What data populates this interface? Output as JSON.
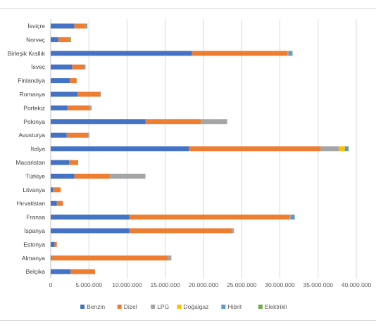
{
  "chart_data": {
    "type": "bar",
    "orientation": "horizontal",
    "stacked": true,
    "title": "",
    "xlabel": "",
    "ylabel": "",
    "xlim": [
      0,
      40000000
    ],
    "x_ticks": [
      {
        "value": 0,
        "label": "0"
      },
      {
        "value": 5000000,
        "label": "5.000.000"
      },
      {
        "value": 10000000,
        "label": "10.000.000"
      },
      {
        "value": 15000000,
        "label": "15.000.000"
      },
      {
        "value": 20000000,
        "label": "20.000.000"
      },
      {
        "value": 25000000,
        "label": "25.000.000"
      },
      {
        "value": 30000000,
        "label": "30.000.000"
      },
      {
        "value": 35000000,
        "label": "35.000.000"
      },
      {
        "value": 40000000,
        "label": "40.000.000"
      }
    ],
    "grid": true,
    "legend_position": "bottom",
    "categories": [
      "İsviçre",
      "Norveç",
      "Birleşik Krallık",
      "İsveç",
      "Finlandiya",
      "Romanya",
      "Portekiz",
      "Polonya",
      "Avusturya",
      "İtalya",
      "Macaristan",
      "Türkiye",
      "Litvanya",
      "Hırvatistan",
      "Fransa",
      "İspanya",
      "Estonya",
      "Almanya",
      "Belçika"
    ],
    "series": [
      {
        "name": "Benzin",
        "color": "#4472c4",
        "values": [
          3100000,
          1000000,
          18500000,
          2800000,
          2500000,
          3500000,
          2200000,
          12400000,
          2100000,
          18100000,
          2400000,
          3100000,
          300000,
          800000,
          10300000,
          10300000,
          500000,
          100000,
          2600000
        ]
      },
      {
        "name": "Dizel",
        "color": "#ed7d31",
        "values": [
          1500000,
          1400000,
          12500000,
          1600000,
          900000,
          3000000,
          2900000,
          7300000,
          2800000,
          17200000,
          1200000,
          4600000,
          1000000,
          800000,
          21000000,
          13400000,
          300000,
          15200000,
          3200000
        ]
      },
      {
        "name": "LPG",
        "color": "#a5a5a5",
        "values": [
          50000,
          50000,
          200000,
          50000,
          0,
          0,
          200000,
          3400000,
          100000,
          2400000,
          0,
          4700000,
          0,
          0,
          100000,
          300000,
          0,
          500000,
          0
        ]
      },
      {
        "name": "Doğalgaz",
        "color": "#ffc000",
        "values": [
          0,
          0,
          0,
          0,
          0,
          0,
          0,
          0,
          0,
          800000,
          0,
          0,
          0,
          0,
          0,
          0,
          0,
          0,
          0
        ]
      },
      {
        "name": "Hibrit",
        "color": "#5b9bd5",
        "values": [
          100000,
          0,
          400000,
          100000,
          0,
          50000,
          0,
          0,
          50000,
          300000,
          0,
          0,
          0,
          0,
          500000,
          0,
          0,
          0,
          0
        ]
      },
      {
        "name": "Elektrikli",
        "color": "#70ad47",
        "values": [
          50000,
          200000,
          50000,
          0,
          0,
          0,
          50000,
          0,
          0,
          200000,
          0,
          0,
          0,
          0,
          50000,
          0,
          0,
          0,
          0
        ]
      }
    ]
  }
}
